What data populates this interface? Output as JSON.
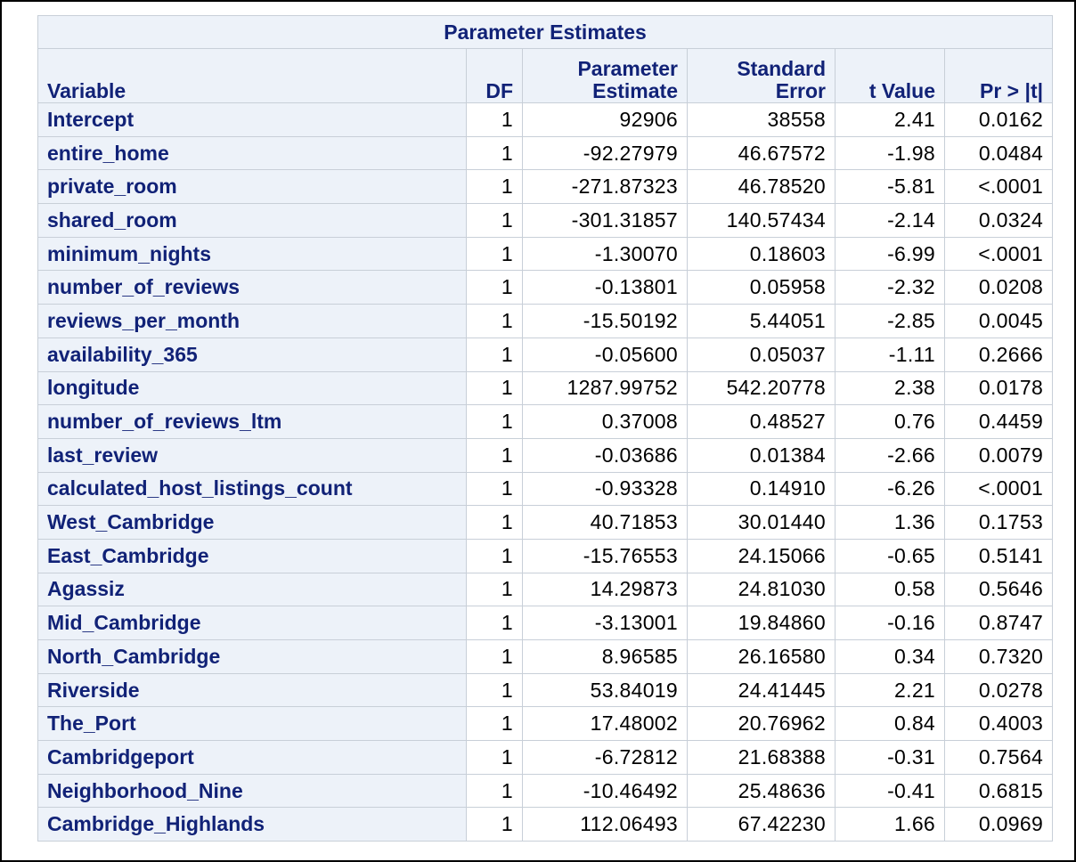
{
  "table": {
    "title": "Parameter Estimates",
    "headers": {
      "variable": "Variable",
      "df": "DF",
      "estimate_line1": "Parameter",
      "estimate_line2": "Estimate",
      "stderr_line1": "Standard",
      "stderr_line2": "Error",
      "tvalue": "t Value",
      "prob": "Pr > |t|"
    },
    "rows": [
      {
        "variable": "Intercept",
        "df": "1",
        "estimate": "92906",
        "stderr": "38558",
        "t": "2.41",
        "p": "0.0162"
      },
      {
        "variable": "entire_home",
        "df": "1",
        "estimate": "-92.27979",
        "stderr": "46.67572",
        "t": "-1.98",
        "p": "0.0484"
      },
      {
        "variable": "private_room",
        "df": "1",
        "estimate": "-271.87323",
        "stderr": "46.78520",
        "t": "-5.81",
        "p": "<.0001"
      },
      {
        "variable": "shared_room",
        "df": "1",
        "estimate": "-301.31857",
        "stderr": "140.57434",
        "t": "-2.14",
        "p": "0.0324"
      },
      {
        "variable": "minimum_nights",
        "df": "1",
        "estimate": "-1.30070",
        "stderr": "0.18603",
        "t": "-6.99",
        "p": "<.0001"
      },
      {
        "variable": "number_of_reviews",
        "df": "1",
        "estimate": "-0.13801",
        "stderr": "0.05958",
        "t": "-2.32",
        "p": "0.0208"
      },
      {
        "variable": "reviews_per_month",
        "df": "1",
        "estimate": "-15.50192",
        "stderr": "5.44051",
        "t": "-2.85",
        "p": "0.0045"
      },
      {
        "variable": "availability_365",
        "df": "1",
        "estimate": "-0.05600",
        "stderr": "0.05037",
        "t": "-1.11",
        "p": "0.2666"
      },
      {
        "variable": "longitude",
        "df": "1",
        "estimate": "1287.99752",
        "stderr": "542.20778",
        "t": "2.38",
        "p": "0.0178"
      },
      {
        "variable": "number_of_reviews_ltm",
        "df": "1",
        "estimate": "0.37008",
        "stderr": "0.48527",
        "t": "0.76",
        "p": "0.4459"
      },
      {
        "variable": "last_review",
        "df": "1",
        "estimate": "-0.03686",
        "stderr": "0.01384",
        "t": "-2.66",
        "p": "0.0079"
      },
      {
        "variable": "calculated_host_listings_count",
        "df": "1",
        "estimate": "-0.93328",
        "stderr": "0.14910",
        "t": "-6.26",
        "p": "<.0001"
      },
      {
        "variable": "West_Cambridge",
        "df": "1",
        "estimate": "40.71853",
        "stderr": "30.01440",
        "t": "1.36",
        "p": "0.1753"
      },
      {
        "variable": "East_Cambridge",
        "df": "1",
        "estimate": "-15.76553",
        "stderr": "24.15066",
        "t": "-0.65",
        "p": "0.5141"
      },
      {
        "variable": "Agassiz",
        "df": "1",
        "estimate": "14.29873",
        "stderr": "24.81030",
        "t": "0.58",
        "p": "0.5646"
      },
      {
        "variable": "Mid_Cambridge",
        "df": "1",
        "estimate": "-3.13001",
        "stderr": "19.84860",
        "t": "-0.16",
        "p": "0.8747"
      },
      {
        "variable": "North_Cambridge",
        "df": "1",
        "estimate": "8.96585",
        "stderr": "26.16580",
        "t": "0.34",
        "p": "0.7320"
      },
      {
        "variable": "Riverside",
        "df": "1",
        "estimate": "53.84019",
        "stderr": "24.41445",
        "t": "2.21",
        "p": "0.0278"
      },
      {
        "variable": "The_Port",
        "df": "1",
        "estimate": "17.48002",
        "stderr": "20.76962",
        "t": "0.84",
        "p": "0.4003"
      },
      {
        "variable": "Cambridgeport",
        "df": "1",
        "estimate": "-6.72812",
        "stderr": "21.68388",
        "t": "-0.31",
        "p": "0.7564"
      },
      {
        "variable": "Neighborhood_Nine",
        "df": "1",
        "estimate": "-10.46492",
        "stderr": "25.48636",
        "t": "-0.41",
        "p": "0.6815"
      },
      {
        "variable": "Cambridge_Highlands",
        "df": "1",
        "estimate": "112.06493",
        "stderr": "67.42230",
        "t": "1.66",
        "p": "0.0969"
      }
    ]
  },
  "colors": {
    "header_background": "#edf2f9",
    "header_text": "#112277",
    "border": "#c8cfd8",
    "frame_border": "#000000"
  }
}
